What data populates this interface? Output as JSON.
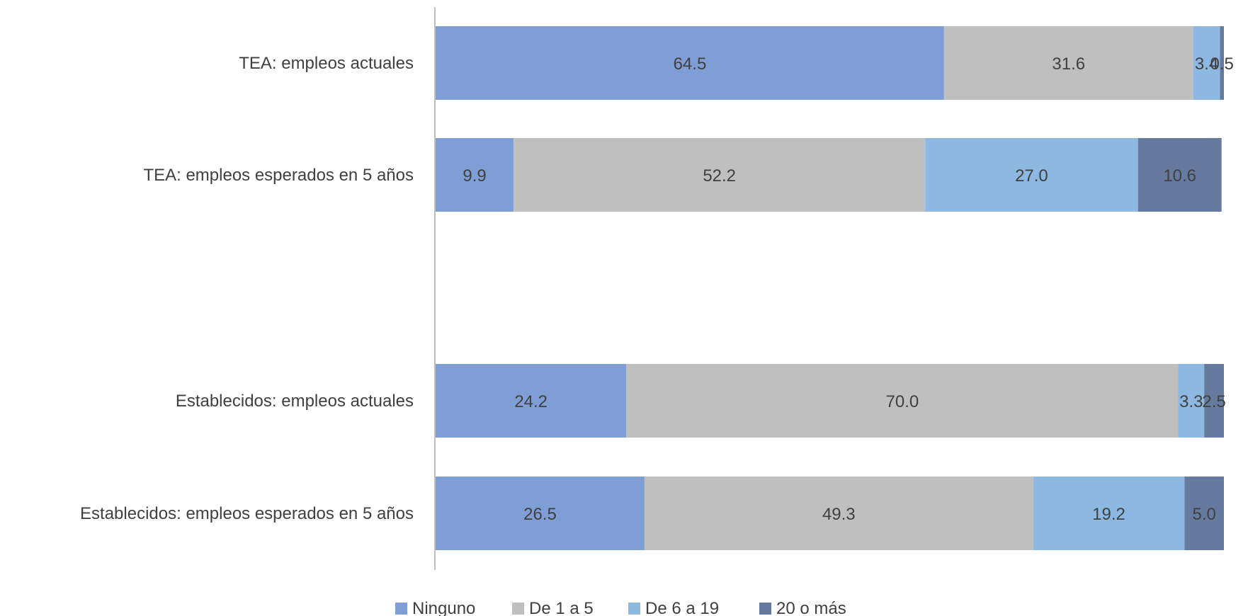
{
  "chart_data": {
    "type": "bar",
    "orientation": "horizontal",
    "stacked": true,
    "categories": [
      "TEA: empleos actuales",
      "TEA: empleos esperados en 5 años",
      "Establecidos: empleos actuales",
      "Establecidos: empleos esperados en 5 años"
    ],
    "series": [
      {
        "name": "Ninguno",
        "values": [
          64.5,
          9.9,
          24.2,
          26.5
        ],
        "color": "#7F9ED6"
      },
      {
        "name": "De 1 a 5",
        "values": [
          31.6,
          52.2,
          70.0,
          49.3
        ],
        "color": "#BFBFBF"
      },
      {
        "name": "De 6 a 19",
        "values": [
          3.4,
          27.0,
          3.3,
          19.2
        ],
        "color": "#8DB8E2"
      },
      {
        "name": "20 o más",
        "values": [
          0.5,
          10.6,
          2.5,
          5.0
        ],
        "color": "#66799F"
      }
    ],
    "data_labels": [
      [
        "64.5",
        "31.6",
        "3.4",
        "0.5"
      ],
      [
        "9.9",
        "52.2",
        "27.0",
        "10.6"
      ],
      [
        "24.2",
        "70.0",
        "3.3",
        "2.5"
      ],
      [
        "26.5",
        "49.3",
        "19.2",
        "5.0"
      ]
    ],
    "xlim": [
      0,
      100
    ],
    "grid": false,
    "legend_position": "bottom",
    "title": "",
    "xlabel": "",
    "ylabel": ""
  }
}
